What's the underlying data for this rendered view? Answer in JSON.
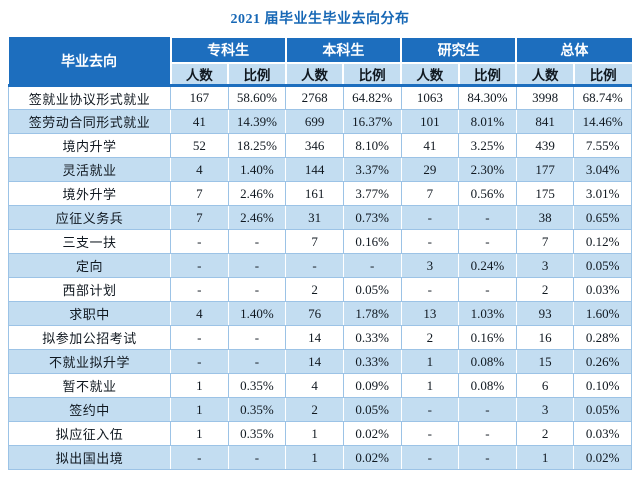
{
  "title": "2021 届毕业生毕业去向分布",
  "colors": {
    "header_blue": "#1d6ebe",
    "light_blue": "#c3ddf1",
    "border_blue": "#9cc3e6",
    "title_blue": "#1667b5",
    "header_text": "#ffffff",
    "body_text": "#101820"
  },
  "chart_data": {
    "type": "table",
    "title": "2021 届毕业生毕业去向分布",
    "first_col_header": "毕业去向",
    "groups": [
      {
        "label": "专科生"
      },
      {
        "label": "本科生"
      },
      {
        "label": "研究生"
      },
      {
        "label": "总体"
      }
    ],
    "subheaders": [
      "人数",
      "比例"
    ],
    "rows": [
      {
        "label": "签就业协议形式就业",
        "values": [
          "167",
          "58.60%",
          "2768",
          "64.82%",
          "1063",
          "84.30%",
          "3998",
          "68.74%"
        ]
      },
      {
        "label": "签劳动合同形式就业",
        "values": [
          "41",
          "14.39%",
          "699",
          "16.37%",
          "101",
          "8.01%",
          "841",
          "14.46%"
        ]
      },
      {
        "label": "境内升学",
        "values": [
          "52",
          "18.25%",
          "346",
          "8.10%",
          "41",
          "3.25%",
          "439",
          "7.55%"
        ]
      },
      {
        "label": "灵活就业",
        "values": [
          "4",
          "1.40%",
          "144",
          "3.37%",
          "29",
          "2.30%",
          "177",
          "3.04%"
        ]
      },
      {
        "label": "境外升学",
        "values": [
          "7",
          "2.46%",
          "161",
          "3.77%",
          "7",
          "0.56%",
          "175",
          "3.01%"
        ]
      },
      {
        "label": "应征义务兵",
        "values": [
          "7",
          "2.46%",
          "31",
          "0.73%",
          "-",
          "-",
          "38",
          "0.65%"
        ]
      },
      {
        "label": "三支一扶",
        "values": [
          "-",
          "-",
          "7",
          "0.16%",
          "-",
          "-",
          "7",
          "0.12%"
        ]
      },
      {
        "label": "定向",
        "values": [
          "-",
          "-",
          "-",
          "-",
          "3",
          "0.24%",
          "3",
          "0.05%"
        ]
      },
      {
        "label": "西部计划",
        "values": [
          "-",
          "-",
          "2",
          "0.05%",
          "-",
          "-",
          "2",
          "0.03%"
        ]
      },
      {
        "label": "求职中",
        "values": [
          "4",
          "1.40%",
          "76",
          "1.78%",
          "13",
          "1.03%",
          "93",
          "1.60%"
        ]
      },
      {
        "label": "拟参加公招考试",
        "values": [
          "-",
          "-",
          "14",
          "0.33%",
          "2",
          "0.16%",
          "16",
          "0.28%"
        ]
      },
      {
        "label": "不就业拟升学",
        "values": [
          "-",
          "-",
          "14",
          "0.33%",
          "1",
          "0.08%",
          "15",
          "0.26%"
        ]
      },
      {
        "label": "暂不就业",
        "values": [
          "1",
          "0.35%",
          "4",
          "0.09%",
          "1",
          "0.08%",
          "6",
          "0.10%"
        ]
      },
      {
        "label": "签约中",
        "values": [
          "1",
          "0.35%",
          "2",
          "0.05%",
          "-",
          "-",
          "3",
          "0.05%"
        ]
      },
      {
        "label": "拟应征入伍",
        "values": [
          "1",
          "0.35%",
          "1",
          "0.02%",
          "-",
          "-",
          "2",
          "0.03%"
        ]
      },
      {
        "label": "拟出国出境",
        "values": [
          "-",
          "-",
          "1",
          "0.02%",
          "-",
          "-",
          "1",
          "0.02%"
        ]
      }
    ]
  }
}
